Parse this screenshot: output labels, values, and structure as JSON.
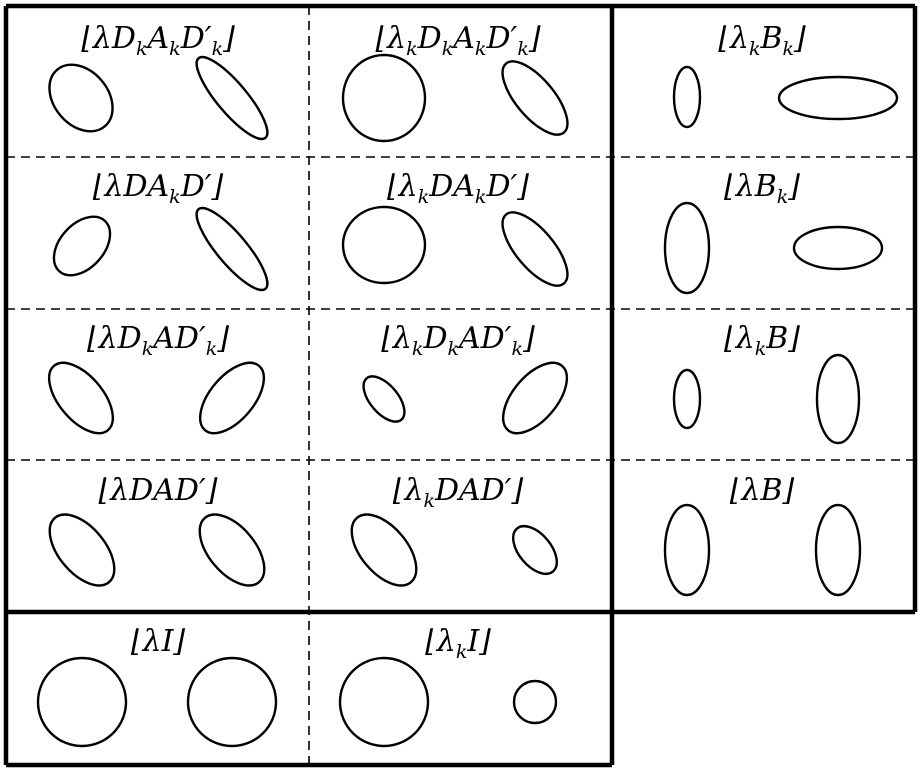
{
  "cells": [
    {
      "id": "lDkAkDk",
      "label": [
        [
          "⌊λD",
          ""
        ],
        [
          "k",
          "sub"
        ],
        [
          "A",
          ""
        ],
        [
          "k",
          "sub"
        ],
        [
          "D′",
          ""
        ],
        [
          "k",
          "sub"
        ],
        [
          "⌋",
          ""
        ]
      ]
    },
    {
      "id": "lkDkAkDk",
      "label": [
        [
          "⌊λ",
          ""
        ],
        [
          "k",
          "sub"
        ],
        [
          "D",
          ""
        ],
        [
          "k",
          "sub"
        ],
        [
          "A",
          ""
        ],
        [
          "k",
          "sub"
        ],
        [
          "D′",
          ""
        ],
        [
          "k",
          "sub"
        ],
        [
          "⌋",
          ""
        ]
      ]
    },
    {
      "id": "lkBk",
      "label": [
        [
          "⌊λ",
          ""
        ],
        [
          "k",
          "sub"
        ],
        [
          "B",
          ""
        ],
        [
          "k",
          "sub"
        ],
        [
          "⌋",
          ""
        ]
      ]
    },
    {
      "id": "lDAkD",
      "label": [
        [
          "⌊λDA",
          ""
        ],
        [
          "k",
          "sub"
        ],
        [
          "D′⌋",
          ""
        ]
      ]
    },
    {
      "id": "lkDAkD",
      "label": [
        [
          "⌊λ",
          ""
        ],
        [
          "k",
          "sub"
        ],
        [
          "DA",
          ""
        ],
        [
          "k",
          "sub"
        ],
        [
          "D′⌋",
          ""
        ]
      ]
    },
    {
      "id": "lBk",
      "label": [
        [
          "⌊λB",
          ""
        ],
        [
          "k",
          "sub"
        ],
        [
          "⌋",
          ""
        ]
      ]
    },
    {
      "id": "lDkADk",
      "label": [
        [
          "⌊λD",
          ""
        ],
        [
          "k",
          "sub"
        ],
        [
          "AD′",
          ""
        ],
        [
          "k",
          "sub"
        ],
        [
          "⌋",
          ""
        ]
      ]
    },
    {
      "id": "lkDkADk",
      "label": [
        [
          "⌊λ",
          ""
        ],
        [
          "k",
          "sub"
        ],
        [
          "D",
          ""
        ],
        [
          "k",
          "sub"
        ],
        [
          "AD′",
          ""
        ],
        [
          "k",
          "sub"
        ],
        [
          "⌋",
          ""
        ]
      ]
    },
    {
      "id": "lkB",
      "label": [
        [
          "⌊λ",
          ""
        ],
        [
          "k",
          "sub"
        ],
        [
          "B⌋",
          ""
        ]
      ]
    },
    {
      "id": "lDAD",
      "label": [
        [
          "⌊λDAD′⌋",
          ""
        ]
      ]
    },
    {
      "id": "lkDAD",
      "label": [
        [
          "⌊λ",
          ""
        ],
        [
          "k",
          "sub"
        ],
        [
          "DAD′⌋",
          ""
        ]
      ]
    },
    {
      "id": "lB",
      "label": [
        [
          "⌊λB⌋",
          ""
        ]
      ]
    },
    {
      "id": "lI",
      "label": [
        [
          "⌊λI⌋",
          ""
        ]
      ]
    },
    {
      "id": "lkI",
      "label": [
        [
          "⌊λ",
          ""
        ],
        [
          "k",
          "sub"
        ],
        [
          "I⌋",
          ""
        ]
      ]
    }
  ]
}
